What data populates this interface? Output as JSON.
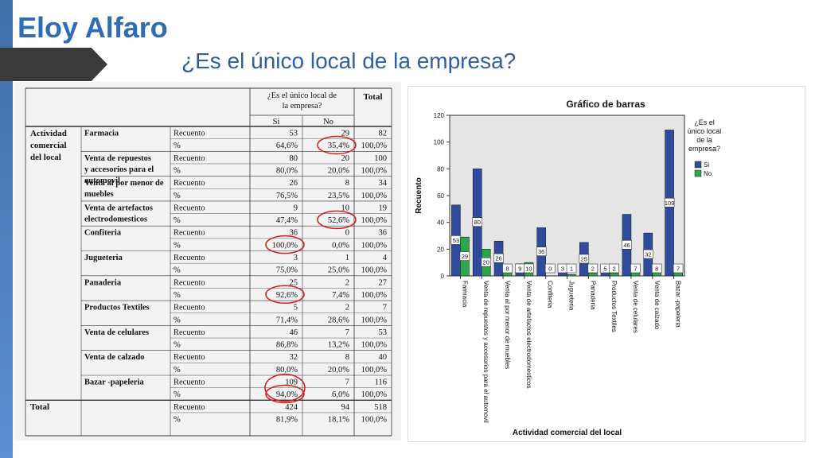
{
  "header": {
    "title": "Eloy Alfaro",
    "subtitle": "¿Es el único local de la empresa?"
  },
  "table": {
    "header_question": [
      "¿Es el único local de",
      "la empresa?"
    ],
    "header_total": "Total",
    "col_si": "Si",
    "col_no": "No",
    "row_group_label": [
      "Actividad",
      "comercial",
      "del local"
    ],
    "rows": [
      {
        "category": [
          "Farmacia"
        ],
        "recuento": [
          "53",
          "29",
          "82"
        ],
        "pct": [
          "64,6%",
          "35,4%",
          "100,0%"
        ]
      },
      {
        "category": [
          "Venta de repuestos",
          "y accesorios para el",
          "automovil"
        ],
        "recuento": [
          "80",
          "20",
          "100"
        ],
        "pct": [
          "80,0%",
          "20,0%",
          "100,0%"
        ]
      },
      {
        "category": [
          "Venta al por menor de",
          "muebles"
        ],
        "recuento": [
          "26",
          "8",
          "34"
        ],
        "pct": [
          "76,5%",
          "23,5%",
          "100,0%"
        ]
      },
      {
        "category": [
          "Venta de artefactos",
          "electrodomesticos"
        ],
        "recuento": [
          "9",
          "10",
          "19"
        ],
        "pct": [
          "47,4%",
          "52,6%",
          "100,0%"
        ]
      },
      {
        "category": [
          "Confiteria"
        ],
        "recuento": [
          "36",
          "0",
          "36"
        ],
        "pct": [
          "100,0%",
          "0,0%",
          "100,0%"
        ]
      },
      {
        "category": [
          "Jugueteria"
        ],
        "recuento": [
          "3",
          "1",
          "4"
        ],
        "pct": [
          "75,0%",
          "25,0%",
          "100,0%"
        ]
      },
      {
        "category": [
          "Panaderia"
        ],
        "recuento": [
          "25",
          "2",
          "27"
        ],
        "pct": [
          "92,6%",
          "7,4%",
          "100,0%"
        ]
      },
      {
        "category": [
          "Productos Textiles"
        ],
        "recuento": [
          "5",
          "2",
          "7"
        ],
        "pct": [
          "71,4%",
          "28,6%",
          "100,0%"
        ]
      },
      {
        "category": [
          "Venta de celulares"
        ],
        "recuento": [
          "46",
          "7",
          "53"
        ],
        "pct": [
          "86,8%",
          "13,2%",
          "100,0%"
        ]
      },
      {
        "category": [
          "Venta de calzado"
        ],
        "recuento": [
          "32",
          "8",
          "40"
        ],
        "pct": [
          "80,0%",
          "20,0%",
          "100,0%"
        ]
      },
      {
        "category": [
          "Bazar -papeleria"
        ],
        "recuento": [
          "109",
          "7",
          "116"
        ],
        "pct": [
          "94,0%",
          "6,0%",
          "100,0%"
        ]
      }
    ],
    "total_row": {
      "label": "Total",
      "recuento": [
        "424",
        "94",
        "518"
      ],
      "pct": [
        "81,9%",
        "18,1%",
        "100,0%"
      ]
    },
    "stat_recuento": "Recuento",
    "stat_pct": "%",
    "highlighted_cells": [
      "Farmacia No %",
      "Venta de artefactos No %",
      "Confiteria Si %",
      "Panaderia Si %",
      "Bazar -papeleria Si Recuento",
      "Bazar -papeleria Si %"
    ],
    "highlight_color": "#d01c1c"
  },
  "chart_data": {
    "type": "bar",
    "title": "Gráfico de barras",
    "xlabel": "Actividad comercial del local",
    "ylabel": "Recuento",
    "ylim": [
      0,
      120
    ],
    "yticks": [
      0,
      20,
      40,
      60,
      80,
      100,
      120
    ],
    "legend_title": "¿Es el único local de la empresa?",
    "legend_position": "right",
    "categories": [
      "Farmacia",
      "Venta de repuestos y accesorios para el automovil",
      "Venta al por menor de muebles",
      "Venta de artefactos electrodomesticos",
      "Confiteria",
      "Jugueteria",
      "Panaderia",
      "Productos Textiles",
      "Venta de celulares",
      "Venta de calzado",
      "Bazar -papeleria"
    ],
    "series": [
      {
        "name": "Si",
        "color": "#2e4b9e",
        "values": [
          53,
          80,
          26,
          9,
          36,
          3,
          25,
          5,
          46,
          32,
          109
        ]
      },
      {
        "name": "No",
        "color": "#2aa84a",
        "values": [
          29,
          20,
          8,
          10,
          0,
          1,
          2,
          2,
          7,
          8,
          7
        ]
      }
    ]
  }
}
